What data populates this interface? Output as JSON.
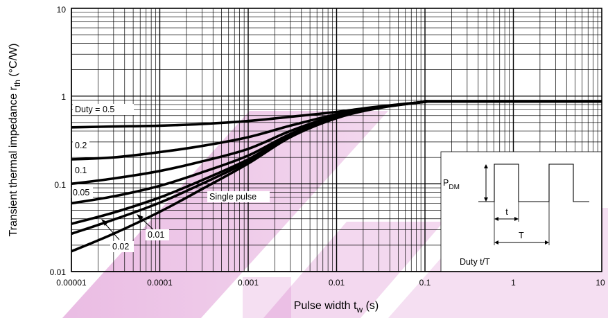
{
  "chart_data": {
    "type": "line",
    "x_scale": "log",
    "y_scale": "log",
    "xlim": [
      1e-05,
      10
    ],
    "ylim": [
      0.01,
      10
    ],
    "grid": true,
    "x_ticks": [
      "0.00001",
      "0.0001",
      "0.001",
      "0.01",
      "0.1",
      "1",
      "10"
    ],
    "y_ticks": [
      "0.01",
      "0.1",
      "1",
      "10"
    ],
    "xlabel": {
      "main": "Pulse width  t",
      "sub": "w",
      "unit": "  (s)"
    },
    "ylabel": {
      "main": "Transient thermal impedance  r",
      "sub": "th",
      "unit": "  (°C/W)"
    },
    "series": [
      {
        "name": "Duty = 0.5",
        "x": [
          1e-05,
          3e-05,
          0.0001,
          0.0003,
          0.001,
          0.003,
          0.01,
          0.03,
          0.1,
          0.12,
          1,
          10
        ],
        "y": [
          0.44,
          0.45,
          0.46,
          0.48,
          0.52,
          0.58,
          0.66,
          0.76,
          0.86,
          0.87,
          0.87,
          0.87
        ]
      },
      {
        "name": "0.2",
        "x": [
          1e-05,
          3e-05,
          0.0001,
          0.0003,
          0.001,
          0.003,
          0.01,
          0.03,
          0.1,
          0.12,
          1,
          10
        ],
        "y": [
          0.19,
          0.2,
          0.23,
          0.27,
          0.34,
          0.46,
          0.62,
          0.75,
          0.86,
          0.87,
          0.87,
          0.87
        ]
      },
      {
        "name": "0.1",
        "x": [
          1e-05,
          3e-05,
          0.0001,
          0.0003,
          0.001,
          0.003,
          0.01,
          0.03,
          0.1,
          0.12,
          1,
          10
        ],
        "y": [
          0.1,
          0.115,
          0.14,
          0.18,
          0.25,
          0.4,
          0.6,
          0.74,
          0.86,
          0.87,
          0.87,
          0.87
        ]
      },
      {
        "name": "0.05",
        "x": [
          1e-05,
          3e-05,
          0.0001,
          0.0003,
          0.001,
          0.003,
          0.01,
          0.03,
          0.1,
          0.12,
          1,
          10
        ],
        "y": [
          0.06,
          0.072,
          0.095,
          0.135,
          0.21,
          0.37,
          0.59,
          0.74,
          0.86,
          0.87,
          0.87,
          0.87
        ]
      },
      {
        "name": "0.02",
        "x": [
          1e-05,
          3e-05,
          0.0001,
          0.0003,
          0.001,
          0.003,
          0.01,
          0.03,
          0.1,
          0.12,
          1,
          10
        ],
        "y": [
          0.035,
          0.047,
          0.07,
          0.11,
          0.19,
          0.36,
          0.58,
          0.74,
          0.86,
          0.87,
          0.87,
          0.87
        ]
      },
      {
        "name": "0.01",
        "x": [
          1e-05,
          3e-05,
          0.0001,
          0.0003,
          0.001,
          0.003,
          0.01,
          0.03,
          0.1,
          0.12,
          1,
          10
        ],
        "y": [
          0.027,
          0.039,
          0.061,
          0.1,
          0.18,
          0.35,
          0.57,
          0.74,
          0.86,
          0.87,
          0.87,
          0.87
        ]
      },
      {
        "name": "Single pulse",
        "x": [
          1e-05,
          3e-05,
          0.0001,
          0.0003,
          0.001,
          0.003,
          0.01,
          0.03,
          0.1,
          0.12,
          1,
          10
        ],
        "y": [
          0.017,
          0.027,
          0.048,
          0.087,
          0.17,
          0.34,
          0.56,
          0.73,
          0.86,
          0.87,
          0.87,
          0.87
        ]
      }
    ],
    "inset": {
      "pdm_main": "P",
      "pdm_sub": "DM",
      "t_label": "t",
      "T_label": "T",
      "duty_label": "Duty  t/T"
    }
  }
}
